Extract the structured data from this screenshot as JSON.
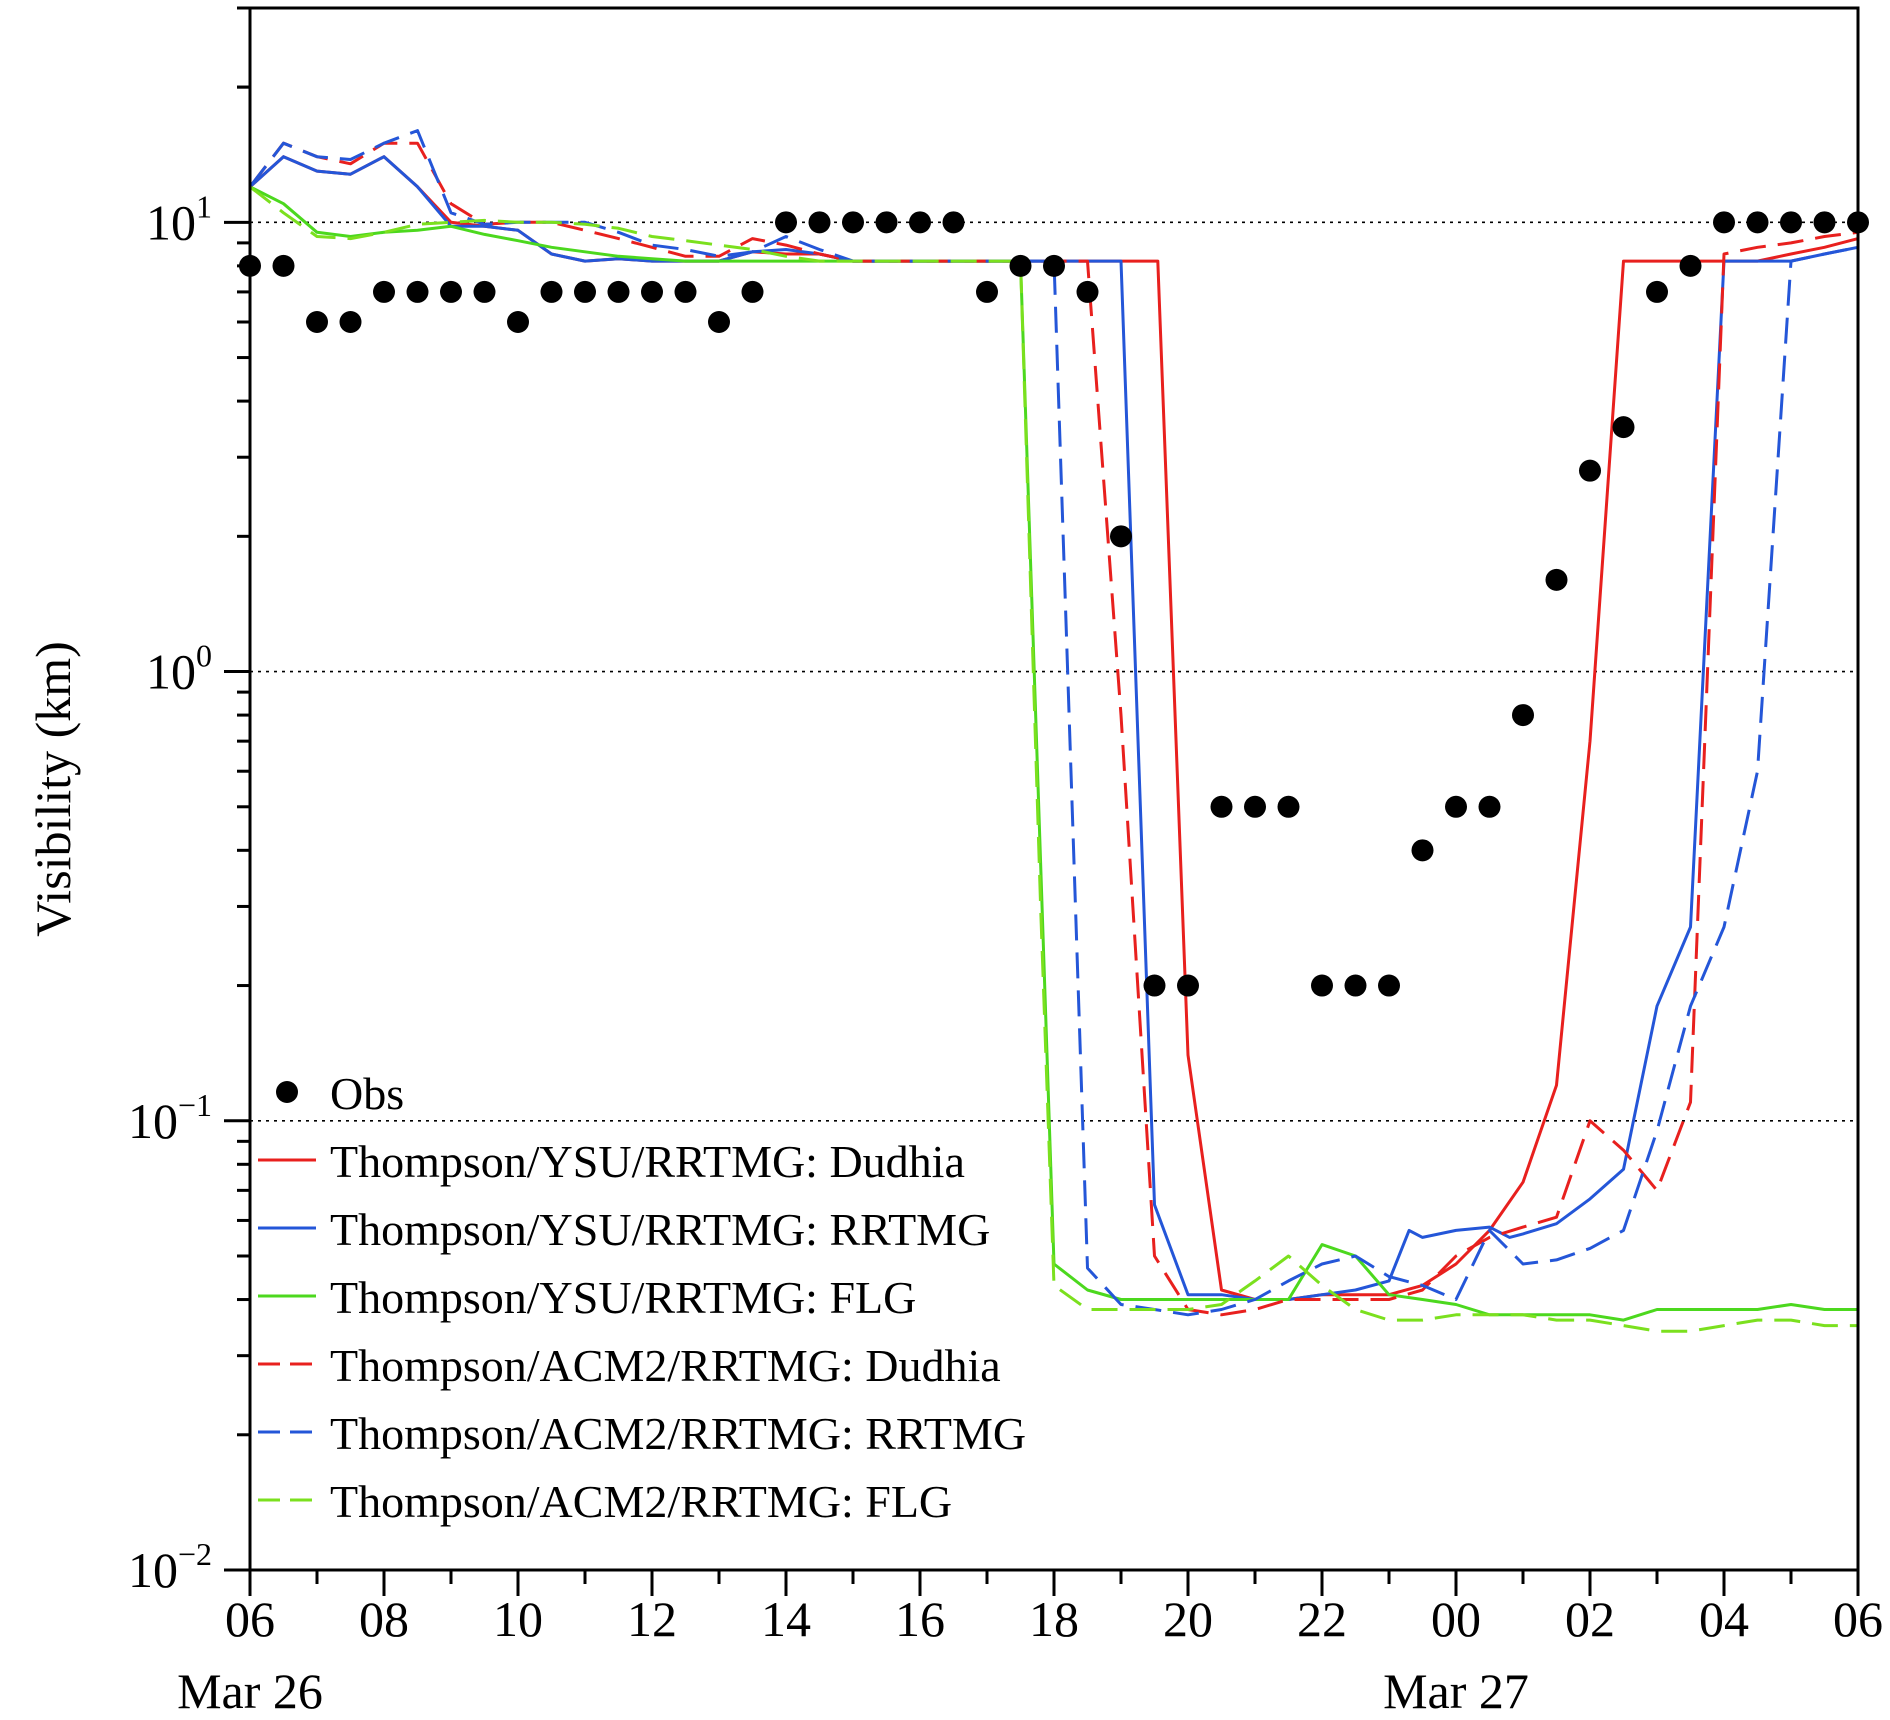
{
  "chart_data": {
    "type": "line",
    "ylabel": "Visibility (km)",
    "yscale": "log",
    "ylim": [
      0.01,
      30
    ],
    "y_ticks": [
      {
        "value": 0.01,
        "base": "10",
        "exp": "−2"
      },
      {
        "value": 0.1,
        "base": "10",
        "exp": "−1"
      },
      {
        "value": 1,
        "base": "10",
        "exp": "0"
      },
      {
        "value": 10,
        "base": "10",
        "exp": "1"
      }
    ],
    "y_gridlines": [
      0.1,
      1,
      10
    ],
    "x_unit": "hours since Mar 26 06:00",
    "xlim": [
      0,
      24
    ],
    "x_ticks": [
      {
        "value": 0,
        "label": "06"
      },
      {
        "value": 2,
        "label": "08"
      },
      {
        "value": 4,
        "label": "10"
      },
      {
        "value": 6,
        "label": "12"
      },
      {
        "value": 8,
        "label": "14"
      },
      {
        "value": 10,
        "label": "16"
      },
      {
        "value": 12,
        "label": "18"
      },
      {
        "value": 14,
        "label": "20"
      },
      {
        "value": 16,
        "label": "22"
      },
      {
        "value": 18,
        "label": "00"
      },
      {
        "value": 20,
        "label": "02"
      },
      {
        "value": 22,
        "label": "04"
      },
      {
        "value": 24,
        "label": "06"
      }
    ],
    "date_labels": [
      {
        "value": 0,
        "label": "Mar 26"
      },
      {
        "value": 18,
        "label": "Mar 27"
      }
    ],
    "legend_position": "bottom-left",
    "obs": {
      "name": "Obs",
      "x": [
        0,
        0.5,
        1,
        1.5,
        2,
        2.5,
        3,
        3.5,
        4,
        4.5,
        5,
        5.5,
        6,
        6.5,
        7,
        7.5,
        8,
        8.5,
        9,
        9.5,
        10,
        10.5,
        11,
        11.5,
        12,
        12.5,
        13,
        13.5,
        14,
        14.5,
        15,
        15.5,
        16,
        16.5,
        17,
        17.5,
        18,
        18.5,
        19,
        19.5,
        20,
        20.5,
        21,
        21.5,
        22,
        22.5,
        23,
        23.5,
        24
      ],
      "y": [
        8,
        8,
        6,
        6,
        7,
        7,
        7,
        7,
        6,
        7,
        7,
        7,
        7,
        7,
        6,
        7,
        10,
        10,
        10,
        10,
        10,
        10,
        7,
        8,
        8,
        7,
        2,
        0.2,
        0.2,
        0.5,
        0.5,
        0.5,
        0.2,
        0.2,
        0.2,
        0.4,
        0.5,
        0.5,
        0.8,
        1.6,
        2.8,
        3.5,
        7,
        8,
        10,
        10,
        10,
        10,
        10
      ]
    },
    "series": [
      {
        "name": "Thompson/YSU/RRTMG: Dudhia",
        "color": "#e8201e",
        "dash": "solid",
        "x": [
          0,
          0.5,
          1,
          1.5,
          2,
          2.5,
          3,
          3.5,
          4,
          4.5,
          5,
          5.5,
          6,
          6.5,
          7,
          7.5,
          8,
          8.5,
          9,
          9.5,
          10,
          10.5,
          11,
          11.5,
          12,
          12.5,
          13,
          13.5,
          13.55,
          14,
          14.5,
          15,
          15.5,
          16,
          16.5,
          17,
          17.5,
          18,
          18.5,
          19,
          19.5,
          20,
          20.5,
          21,
          21.5,
          22,
          22.5,
          23,
          23.5,
          24
        ],
        "y": [
          12,
          14,
          13,
          12.8,
          14,
          12,
          10,
          9.8,
          9.6,
          8.5,
          8.2,
          8.3,
          8.2,
          8.2,
          8.2,
          8.6,
          8.5,
          8.5,
          8.2,
          8.2,
          8.2,
          8.2,
          8.2,
          8.2,
          8.2,
          8.2,
          8.2,
          8.2,
          8.2,
          0.14,
          0.042,
          0.04,
          0.04,
          0.041,
          0.041,
          0.041,
          0.043,
          0.048,
          0.057,
          0.073,
          0.12,
          0.7,
          8.2,
          8.2,
          8.2,
          8.2,
          8.2,
          8.5,
          8.8,
          9.2
        ]
      },
      {
        "name": "Thompson/YSU/RRTMG: RRTMG",
        "color": "#2456d8",
        "dash": "solid",
        "x": [
          0,
          0.5,
          1,
          1.5,
          2,
          2.5,
          3,
          3.5,
          4,
          4.5,
          5,
          5.5,
          6,
          6.5,
          7,
          7.5,
          8,
          8.5,
          9,
          9.5,
          10,
          10.5,
          11,
          11.5,
          12,
          12.5,
          13,
          13.5,
          14,
          14.5,
          15,
          15.5,
          16,
          16.5,
          17,
          17.3,
          17.5,
          18,
          18.5,
          18.8,
          19,
          19.5,
          20,
          20.5,
          21,
          21.5,
          22,
          22.5,
          23,
          23.5,
          24
        ],
        "y": [
          12,
          14,
          13,
          12.8,
          14,
          12,
          9.8,
          9.8,
          9.6,
          8.5,
          8.2,
          8.3,
          8.2,
          8.2,
          8.2,
          8.6,
          8.7,
          8.5,
          8.2,
          8.2,
          8.2,
          8.2,
          8.2,
          8.2,
          8.2,
          8.2,
          8.2,
          0.065,
          0.041,
          0.041,
          0.04,
          0.04,
          0.041,
          0.042,
          0.044,
          0.057,
          0.055,
          0.057,
          0.058,
          0.055,
          0.056,
          0.059,
          0.067,
          0.078,
          0.18,
          0.27,
          8.2,
          8.2,
          8.2,
          8.5,
          8.8
        ]
      },
      {
        "name": "Thompson/YSU/RRTMG: FLG",
        "color": "#4cd81e",
        "dash": "solid",
        "x": [
          0,
          0.5,
          1,
          1.5,
          2,
          2.5,
          3,
          3.5,
          4,
          4.5,
          5,
          5.5,
          6,
          6.5,
          7,
          7.5,
          8,
          8.5,
          9,
          9.5,
          10,
          10.5,
          11,
          11.5,
          12,
          12.5,
          13,
          13.5,
          14,
          14.5,
          15,
          15.5,
          16,
          16.5,
          17,
          17.5,
          18,
          18.5,
          19,
          19.5,
          20,
          20.5,
          21,
          21.5,
          22,
          22.5,
          23,
          23.5,
          24
        ],
        "y": [
          12,
          11,
          9.5,
          9.3,
          9.5,
          9.6,
          9.8,
          9.4,
          9.1,
          8.8,
          8.6,
          8.4,
          8.3,
          8.2,
          8.2,
          8.2,
          8.2,
          8.2,
          8.2,
          8.2,
          8.2,
          8.2,
          8.2,
          8.2,
          0.048,
          0.042,
          0.04,
          0.04,
          0.04,
          0.04,
          0.04,
          0.04,
          0.053,
          0.05,
          0.041,
          0.04,
          0.039,
          0.037,
          0.037,
          0.037,
          0.037,
          0.036,
          0.038,
          0.038,
          0.038,
          0.038,
          0.039,
          0.038,
          0.038
        ]
      },
      {
        "name": "Thompson/ACM2/RRTMG: Dudhia",
        "color": "#e8201e",
        "dash": "dashed",
        "x": [
          0,
          0.5,
          1,
          1.5,
          2,
          2.5,
          3,
          3.5,
          4,
          4.5,
          5,
          5.5,
          6,
          6.5,
          7,
          7.5,
          8,
          8.5,
          9,
          9.5,
          10,
          10.5,
          11,
          11.5,
          12,
          12.5,
          13,
          13.5,
          14,
          14.5,
          15,
          15.5,
          16,
          16.5,
          17,
          17.5,
          18,
          18.5,
          19,
          19.5,
          20,
          20.5,
          21,
          21.5,
          22,
          22.5,
          23,
          23.5,
          24
        ],
        "y": [
          12,
          15,
          14,
          13.5,
          15,
          15,
          11,
          9.9,
          10,
          10,
          9.6,
          9.2,
          8.8,
          8.4,
          8.4,
          9.2,
          8.9,
          8.5,
          8.2,
          8.2,
          8.2,
          8.2,
          8.2,
          8.2,
          8.2,
          8.2,
          0.8,
          0.05,
          0.038,
          0.037,
          0.038,
          0.04,
          0.04,
          0.04,
          0.04,
          0.042,
          0.05,
          0.055,
          0.058,
          0.061,
          0.1,
          0.086,
          0.07,
          0.11,
          8.5,
          8.8,
          9,
          9.3,
          9.5
        ]
      },
      {
        "name": "Thompson/ACM2/RRTMG: RRTMG",
        "color": "#2456d8",
        "dash": "dashed",
        "x": [
          0,
          0.5,
          1,
          1.5,
          2,
          2.5,
          3,
          3.5,
          4,
          4.5,
          5,
          5.5,
          6,
          6.5,
          7,
          7.5,
          8,
          8.5,
          9,
          9.5,
          10,
          10.5,
          11,
          11.5,
          12,
          12.5,
          13,
          13.5,
          14,
          14.5,
          15,
          15.5,
          16,
          16.5,
          17,
          17.5,
          18,
          18.5,
          19,
          19.5,
          20,
          20.5,
          21,
          21.5,
          22,
          22.5,
          23,
          23.5,
          24
        ],
        "y": [
          12,
          15,
          14,
          13.8,
          15,
          16,
          10.5,
          9.9,
          10,
          10,
          10,
          9.5,
          8.9,
          8.7,
          8.4,
          8.6,
          9.3,
          8.7,
          8.2,
          8.2,
          8.2,
          8.2,
          8.2,
          8.2,
          8.2,
          0.047,
          0.039,
          0.038,
          0.037,
          0.038,
          0.04,
          0.044,
          0.048,
          0.05,
          0.045,
          0.043,
          0.04,
          0.057,
          0.048,
          0.049,
          0.052,
          0.057,
          0.095,
          0.18,
          0.27,
          0.6,
          8.2,
          8.5,
          8.8
        ]
      },
      {
        "name": "Thompson/ACM2/RRTMG: FLG",
        "color": "#7be01e",
        "dash": "dashed",
        "x": [
          0,
          0.5,
          1,
          1.5,
          2,
          2.5,
          3,
          3.5,
          4,
          4.5,
          5,
          5.5,
          6,
          6.5,
          7,
          7.5,
          8,
          8.5,
          9,
          9.5,
          10,
          10.5,
          11,
          11.5,
          11.8,
          12,
          12.5,
          13,
          13.5,
          14,
          14.5,
          15,
          15.5,
          16,
          16.5,
          17,
          17.5,
          18,
          18.5,
          19,
          19.5,
          20,
          20.5,
          21,
          21.5,
          22,
          22.5,
          23,
          23.5,
          24
        ],
        "y": [
          12,
          10.5,
          9.3,
          9.2,
          9.5,
          9.9,
          10,
          10.1,
          10,
          10,
          9.9,
          9.7,
          9.3,
          9.1,
          8.9,
          8.7,
          8.4,
          8.2,
          8.2,
          8.2,
          8.2,
          8.2,
          8.2,
          8.2,
          0.3,
          0.043,
          0.038,
          0.038,
          0.038,
          0.038,
          0.039,
          0.044,
          0.05,
          0.043,
          0.038,
          0.036,
          0.036,
          0.037,
          0.037,
          0.037,
          0.036,
          0.036,
          0.035,
          0.034,
          0.034,
          0.035,
          0.036,
          0.036,
          0.035,
          0.035
        ]
      }
    ]
  }
}
